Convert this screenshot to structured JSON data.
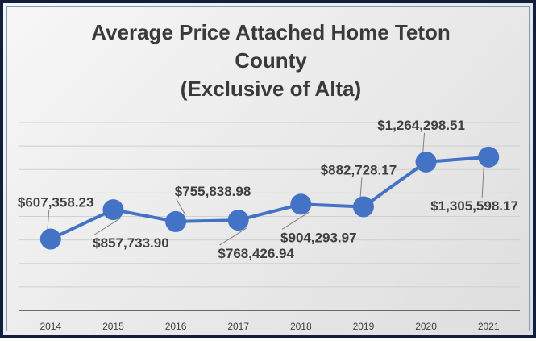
{
  "chart_data": {
    "type": "line",
    "title_lines": [
      "Average Price Attached Home Teton",
      "County",
      "(Exclusive of Alta)"
    ],
    "categories": [
      "2014",
      "2015",
      "2016",
      "2017",
      "2018",
      "2019",
      "2020",
      "2021"
    ],
    "values": [
      607358.23,
      857733.9,
      755838.98,
      768426.94,
      904293.97,
      882728.17,
      1264298.51,
      1305598.17
    ],
    "data_labels": [
      "$607,358.23",
      "$857,733.90",
      "$755,838.98",
      "$768,426.94",
      "$904,293.97",
      "$882,728.17",
      "$1,264,298.51",
      "$1,305,598.17"
    ],
    "label_position": [
      "above-left",
      "below-right",
      "above-right",
      "below-right",
      "below-right",
      "above-left",
      "above-left",
      "below-left"
    ],
    "ylim": [
      0,
      1600000
    ],
    "grid": true,
    "legend": "none",
    "colors": {
      "line": "#4472c4",
      "marker": "#4472c4",
      "grid": "#d0d0d0",
      "axis": "#404040",
      "leader": "#7f7f7f"
    }
  }
}
